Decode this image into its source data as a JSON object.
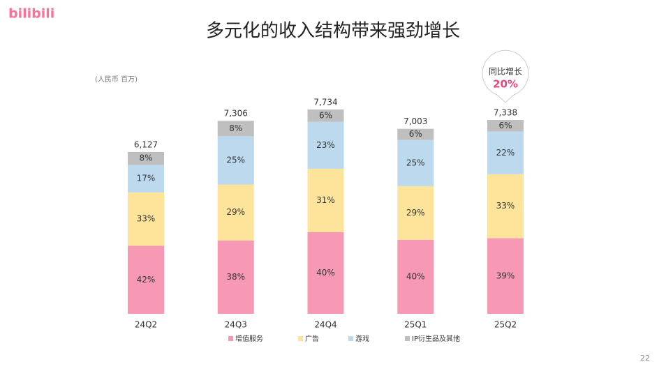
{
  "logo": "bilibili",
  "page_number": "22",
  "chart_data": {
    "type": "bar",
    "stacked": true,
    "title": "多元化的收入结构带来强劲增长",
    "subtitle": "(人民币 百万)",
    "annotation": {
      "label": "同比增长",
      "value": "20%"
    },
    "categories": [
      "24Q2",
      "24Q3",
      "24Q4",
      "25Q1",
      "25Q2"
    ],
    "totals": {
      "values": [
        6127,
        7306,
        7734,
        7003,
        7338
      ],
      "value_labels": [
        "6,127",
        "7,306",
        "7,734",
        "7,003",
        "7,338"
      ]
    },
    "series": [
      {
        "name": "增值服务",
        "color": "#f799b4",
        "values": [
          42,
          38,
          40,
          40,
          39
        ],
        "value_labels": [
          "42%",
          "38%",
          "40%",
          "40%",
          "39%"
        ]
      },
      {
        "name": "广告",
        "color": "#fde49a",
        "values": [
          33,
          29,
          31,
          29,
          33
        ],
        "value_labels": [
          "33%",
          "29%",
          "31%",
          "29%",
          "33%"
        ]
      },
      {
        "name": "游戏",
        "color": "#bcd9ee",
        "values": [
          17,
          25,
          23,
          25,
          22
        ],
        "value_labels": [
          "17%",
          "25%",
          "23%",
          "25%",
          "22%"
        ]
      },
      {
        "name": "IP衍生品及其他",
        "color": "#bfbfbf",
        "values": [
          8,
          8,
          6,
          6,
          6
        ],
        "value_labels": [
          "8%",
          "8%",
          "6%",
          "6%",
          "6%"
        ]
      }
    ],
    "legend": "bottom"
  }
}
